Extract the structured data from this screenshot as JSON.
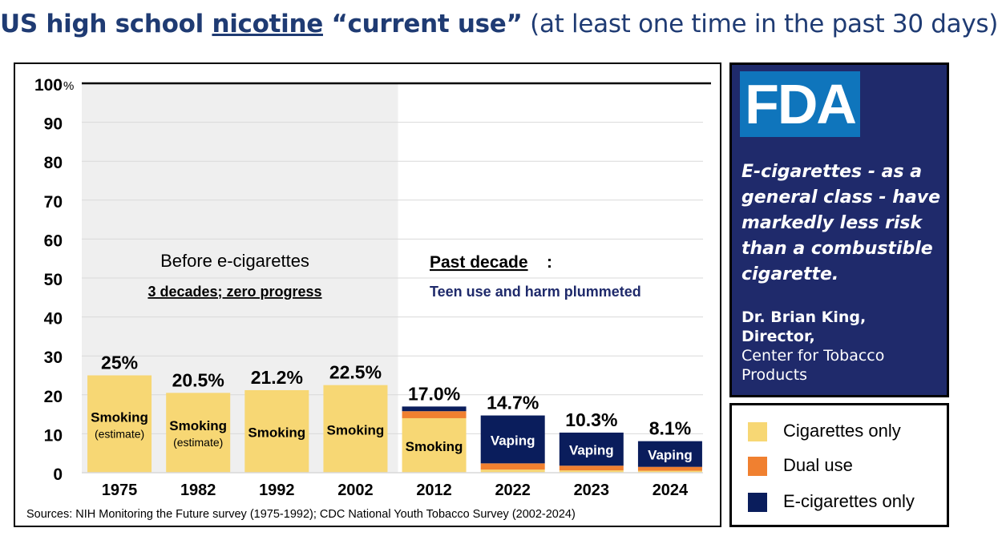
{
  "title": {
    "part1": "US high school ",
    "part2": "nicotine",
    "part3": " “current use”",
    "part4": " (at least one time in the past 30 days)"
  },
  "colors": {
    "cigarettes": "#f7d774",
    "dual": "#f08030",
    "ecig": "#0a1d5c",
    "shade": "#efefef",
    "title": "#1f3b73",
    "navy_text": "#1f2a6b"
  },
  "chart_data": {
    "type": "bar",
    "stacked": true,
    "categories": [
      "1975",
      "1982",
      "1992",
      "2002",
      "2012",
      "2022",
      "2023",
      "2024"
    ],
    "totals_labels": [
      "25%",
      "20.5%",
      "21.2%",
      "22.5%",
      "17.0%",
      "14.7%",
      "10.3%",
      "8.1%"
    ],
    "series": [
      {
        "name": "Cigarettes only",
        "values": [
          25,
          20.5,
          21.2,
          22.5,
          14,
          0.8,
          0.6,
          0.5
        ]
      },
      {
        "name": "Dual use",
        "values": [
          0,
          0,
          0,
          0,
          1.8,
          1.6,
          1.2,
          1.0
        ]
      },
      {
        "name": "E-cigarettes only",
        "values": [
          0,
          0,
          0,
          0,
          1.2,
          12.3,
          8.5,
          6.6
        ]
      }
    ],
    "bar_labels": [
      {
        "text": "Smoking",
        "sub": "(estimate)"
      },
      {
        "text": "Smoking",
        "sub": "(estimate)"
      },
      {
        "text": "Smoking",
        "sub": ""
      },
      {
        "text": "Smoking",
        "sub": ""
      },
      {
        "text": "Smoking",
        "sub": ""
      },
      {
        "text": "Vaping",
        "sub": ""
      },
      {
        "text": "Vaping",
        "sub": ""
      },
      {
        "text": "Vaping",
        "sub": ""
      }
    ],
    "y_ticks": [
      "0",
      "10",
      "20",
      "30",
      "40",
      "50",
      "60",
      "70",
      "80",
      "90",
      "100"
    ],
    "y_unit": "%",
    "ylim": [
      0,
      100
    ],
    "grid": true,
    "annotations": {
      "before_title": "Before e-cigarettes",
      "before_sub": "3 decades; zero progress",
      "after_title": "Past decade",
      "after_colon": ":",
      "after_sub": "Teen use and harm plummeted"
    },
    "source": "Sources:  NIH Monitoring the Future survey (1975-1992); CDC National Youth Tobacco Survey (2002-2024)"
  },
  "fda": {
    "logo": "FDA",
    "quote": "E-cigarettes - as a general class - have markedly less risk than a combustible cigarette.",
    "author_name": "Dr. Brian King, Director,",
    "author_org": "Center for Tobacco Products"
  },
  "legend": [
    {
      "label": "Cigarettes only"
    },
    {
      "label": "Dual use"
    },
    {
      "label": "E-cigarettes only"
    }
  ]
}
